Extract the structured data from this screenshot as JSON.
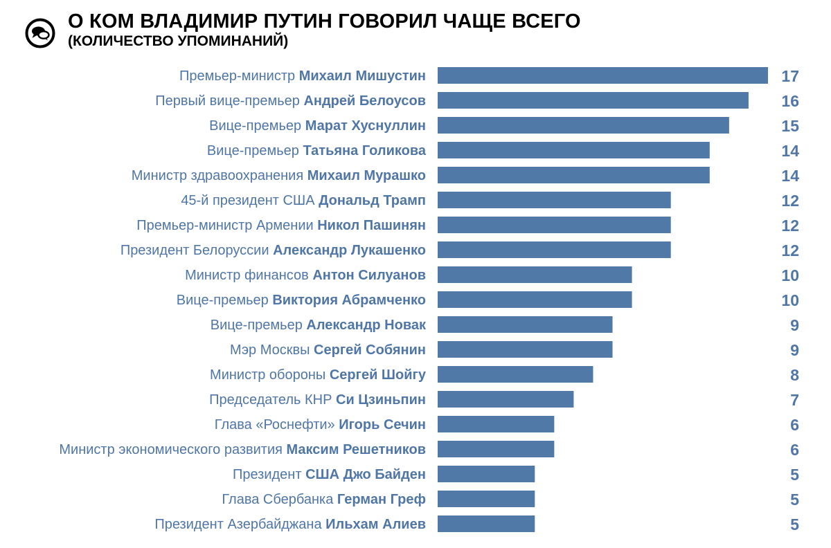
{
  "header": {
    "title": "О КОМ ВЛАДИМИР ПУТИН ГОВОРИЛ ЧАЩЕ ВСЕГО",
    "subtitle": "(КОЛИЧЕСТВО УПОМИНАНИЙ)"
  },
  "logo_icon": "speech-bubbles-icon",
  "colors": {
    "bar": "#5179a8",
    "label": "#4f76a6",
    "title": "#000000"
  },
  "chart_data": {
    "type": "bar",
    "orientation": "horizontal",
    "title": "О КОМ ВЛАДИМИР ПУТИН ГОВОРИЛ ЧАЩЕ ВСЕГО",
    "subtitle": "(КОЛИЧЕСТВО УПОМИНАНИЙ)",
    "xlim": [
      0,
      17
    ],
    "grid": false,
    "items": [
      {
        "desc": "Премьер-министр",
        "name": "Михаил Мишустин",
        "value": 17
      },
      {
        "desc": "Первый вице-премьер",
        "name": "Андрей Белоусов",
        "value": 16
      },
      {
        "desc": "Вице-премьер",
        "name": "Марат Хуснуллин",
        "value": 15
      },
      {
        "desc": "Вице-премьер",
        "name": "Татьяна Голикова",
        "value": 14
      },
      {
        "desc": "Министр здравоохранения",
        "name": "Михаил Мурашко",
        "value": 14
      },
      {
        "desc": "45-й президент США",
        "name": "Дональд Трамп",
        "value": 12
      },
      {
        "desc": "Премьер-министр Армении",
        "name": "Никол Пашинян",
        "value": 12
      },
      {
        "desc": "Президент Белоруссии",
        "name": "Александр Лукашенко",
        "value": 12
      },
      {
        "desc": "Министр финансов",
        "name": "Антон Силуанов",
        "value": 10
      },
      {
        "desc": "Вице-премьер",
        "name": "Виктория Абрамченко",
        "value": 10
      },
      {
        "desc": "Вице-премьер",
        "name": "Александр Новак",
        "value": 9
      },
      {
        "desc": "Мэр Москвы",
        "name": "Сергей Собянин",
        "value": 9
      },
      {
        "desc": "Министр обороны",
        "name": "Сергей Шойгу",
        "value": 8
      },
      {
        "desc": "Председатель КНР",
        "name": "Си Цзиньпин",
        "value": 7
      },
      {
        "desc": "Глава «Роснефти»",
        "name": "Игорь Сечин",
        "value": 6
      },
      {
        "desc": "Министр экономического развития",
        "name": "Максим Решетников",
        "value": 6
      },
      {
        "desc": "Президент",
        "name": "США Джо Байден",
        "value": 5
      },
      {
        "desc": "Глава Сбербанка",
        "name": "Герман Греф",
        "value": 5
      },
      {
        "desc": "Президент Азербайджана",
        "name": "Ильхам Алиев",
        "value": 5
      }
    ]
  }
}
